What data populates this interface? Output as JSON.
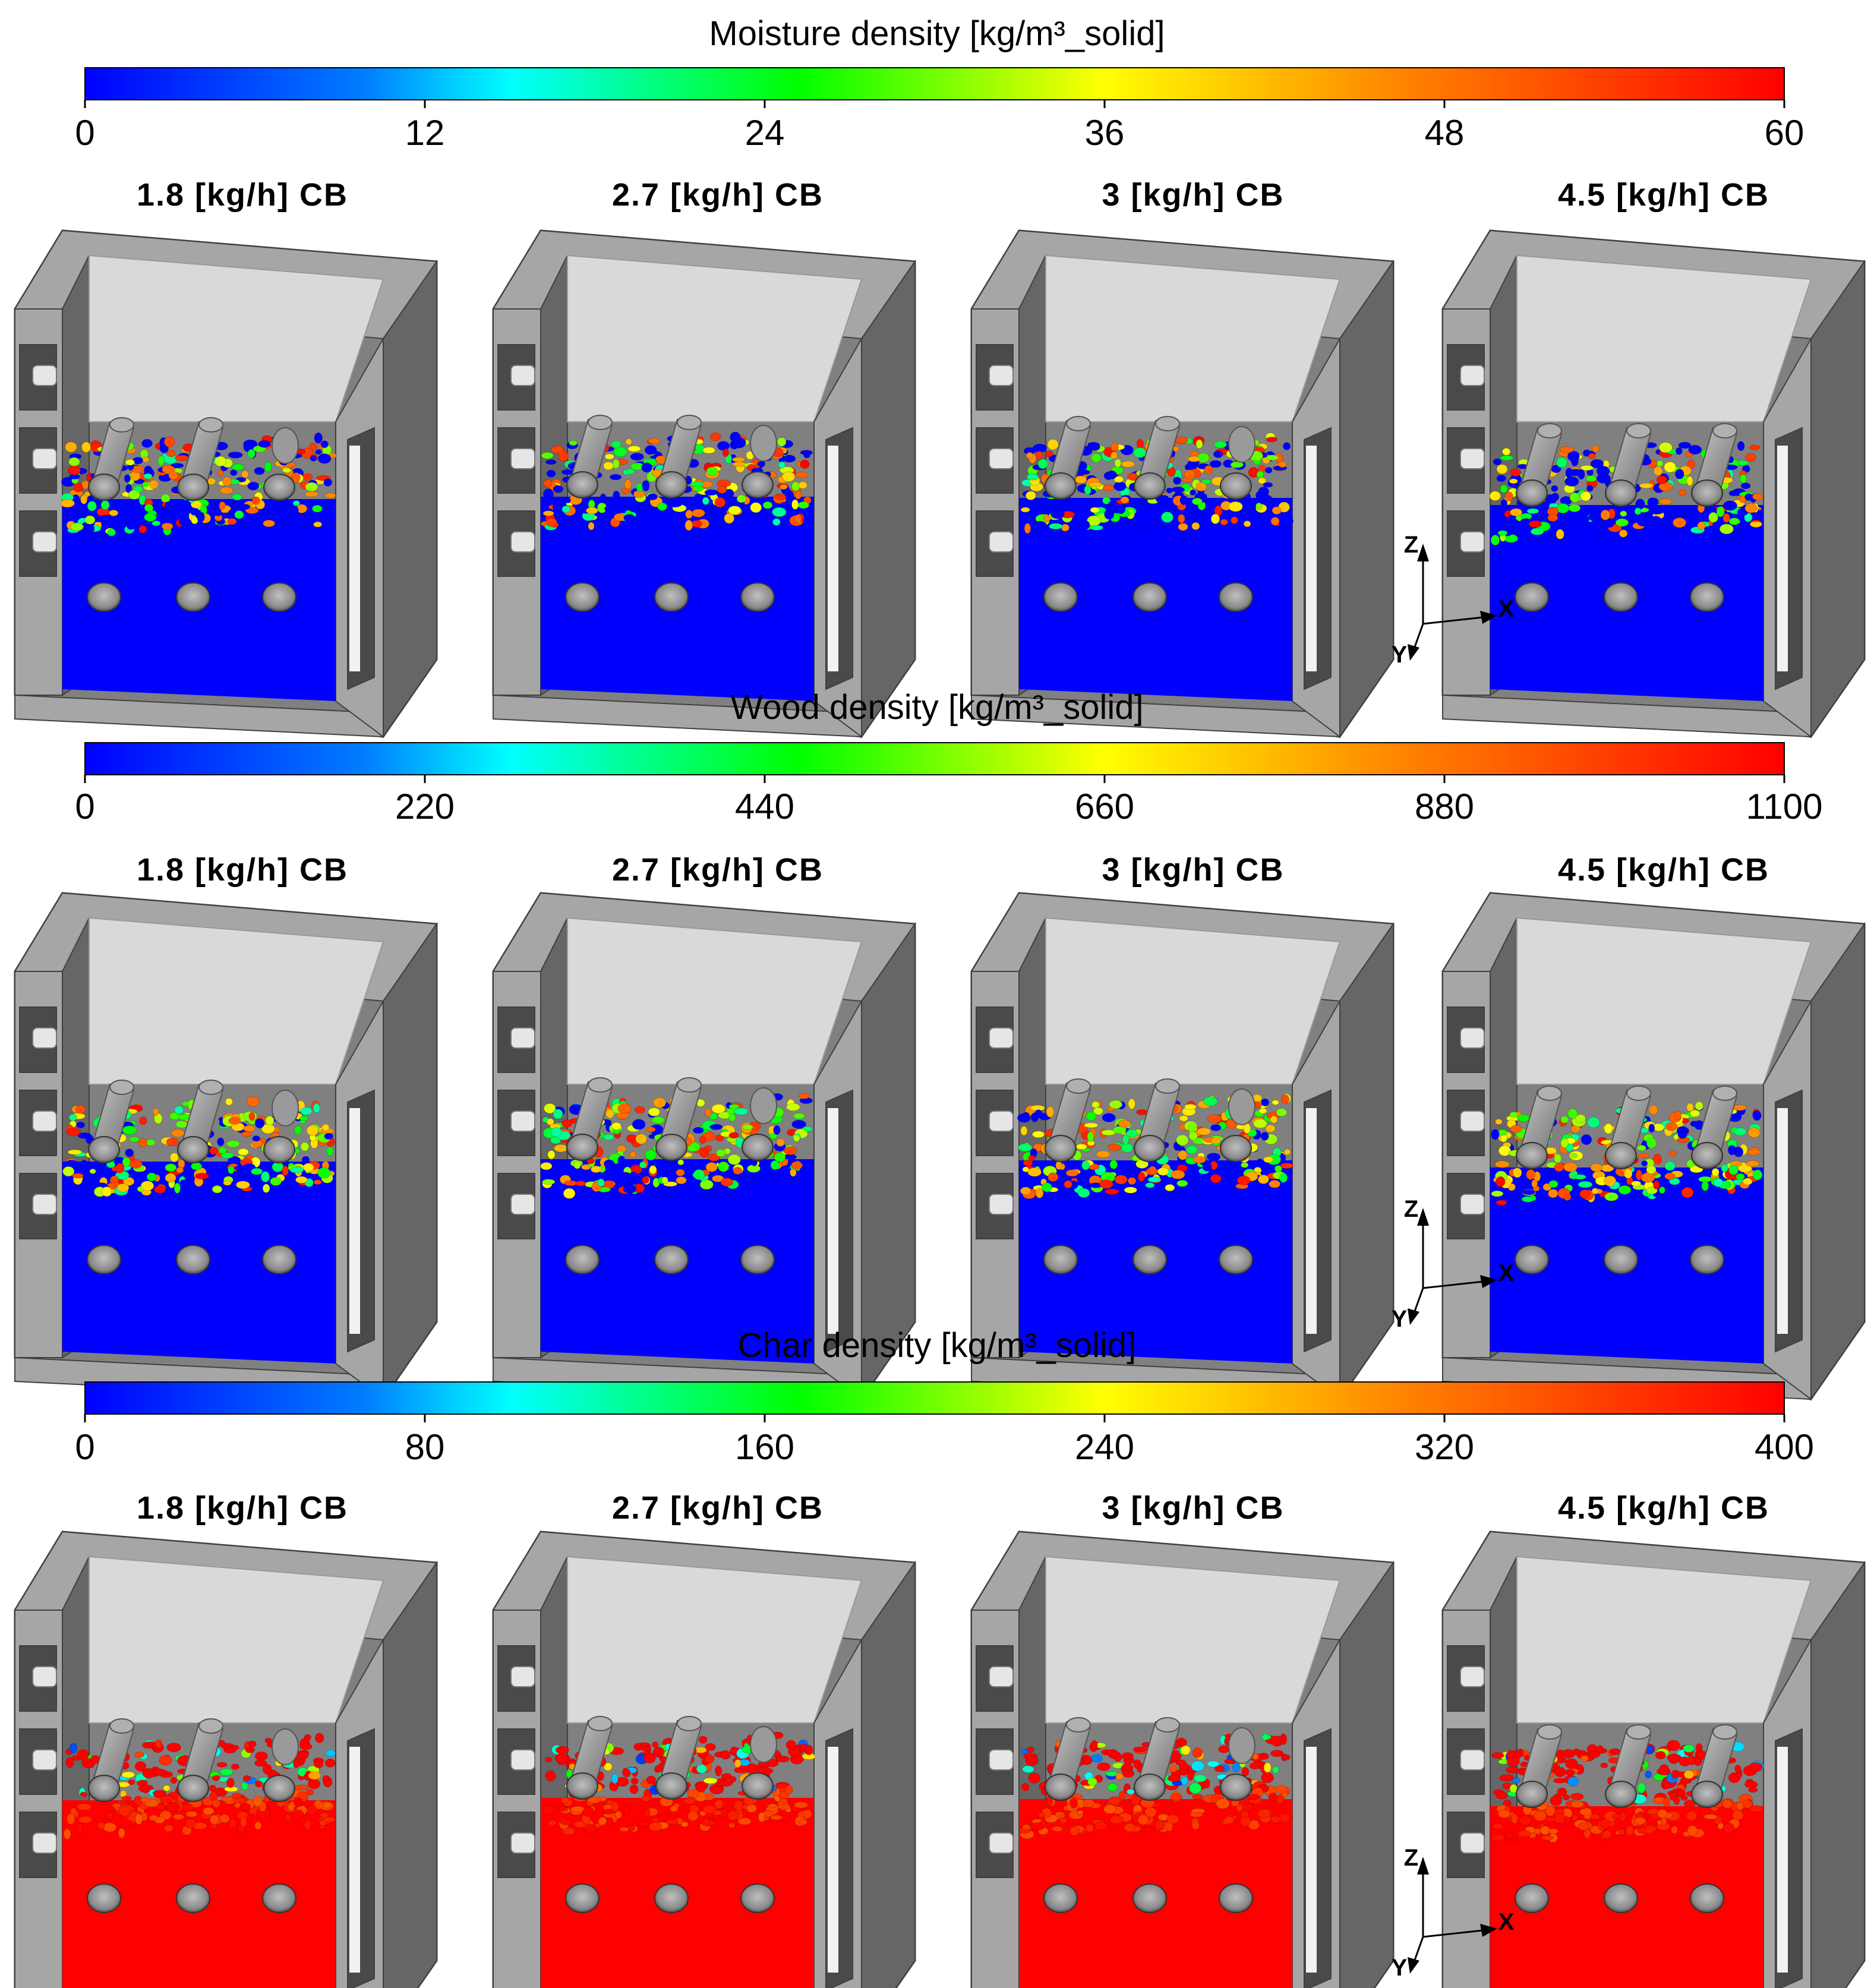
{
  "colormap": {
    "stops": [
      "#0000ff",
      "#0080ff",
      "#00ffff",
      "#00ff00",
      "#ffff00",
      "#ff8000",
      "#ff0000"
    ]
  },
  "colors": {
    "wall_dark": "#666666",
    "wall_mid": "#808080",
    "wall_light": "#a6a6a6",
    "back_panel": "#d9d9d9",
    "tube": "#9c9c9c",
    "frame_outline": "#404040"
  },
  "case_labels": [
    "1.8 [kg/h] CB",
    "2.7 [kg/h] CB",
    "3 [kg/h] CB",
    "4.5 [kg/h] CB"
  ],
  "axes": {
    "z": "Z",
    "x": "X",
    "y": "Y"
  },
  "rows": [
    {
      "id": "moisture",
      "title": "Moisture density [kg/m³_solid]",
      "ticks": [
        "0",
        "12",
        "24",
        "36",
        "48",
        "60"
      ],
      "range": [
        0,
        60
      ],
      "bed_fraction": 0.0,
      "panels": [
        {
          "case": "1.8 [kg/h] CB",
          "bed_top_fraction": 0.55,
          "mixed_fraction": 0.62
        },
        {
          "case": "2.7 [kg/h] CB",
          "bed_top_fraction": 0.57,
          "mixed_fraction": 0.62
        },
        {
          "case": "3 [kg/h] CB",
          "bed_top_fraction": 0.56,
          "mixed_fraction": 0.62
        },
        {
          "case": "4.5 [kg/h] CB",
          "bed_top_fraction": 0.5,
          "mixed_fraction": 0.55
        }
      ]
    },
    {
      "id": "wood",
      "title": "Wood density [kg/m³_solid]",
      "ticks": [
        "0",
        "220",
        "440",
        "660",
        "880",
        "1100"
      ],
      "range": [
        0,
        1100
      ],
      "bed_fraction": 0.0,
      "panels": [
        {
          "case": "1.8 [kg/h] CB",
          "bed_top_fraction": 0.55,
          "mixed_fraction": 0.85
        },
        {
          "case": "2.7 [kg/h] CB",
          "bed_top_fraction": 0.57,
          "mixed_fraction": 0.85
        },
        {
          "case": "3 [kg/h] CB",
          "bed_top_fraction": 0.56,
          "mixed_fraction": 0.85
        },
        {
          "case": "4.5 [kg/h] CB",
          "bed_top_fraction": 0.5,
          "mixed_fraction": 0.88
        }
      ]
    },
    {
      "id": "char",
      "title": "Char density [kg/m³_solid]",
      "ticks": [
        "0",
        "80",
        "160",
        "240",
        "320",
        "400"
      ],
      "range": [
        0,
        400
      ],
      "bed_fraction": 1.0,
      "panels": [
        {
          "case": "1.8 [kg/h] CB",
          "bed_top_fraction": 0.55,
          "mixed_fraction": 0.35
        },
        {
          "case": "2.7 [kg/h] CB",
          "bed_top_fraction": 0.57,
          "mixed_fraction": 0.3
        },
        {
          "case": "3 [kg/h] CB",
          "bed_top_fraction": 0.56,
          "mixed_fraction": 0.3
        },
        {
          "case": "4.5 [kg/h] CB",
          "bed_top_fraction": 0.5,
          "mixed_fraction": 0.25
        }
      ]
    }
  ]
}
